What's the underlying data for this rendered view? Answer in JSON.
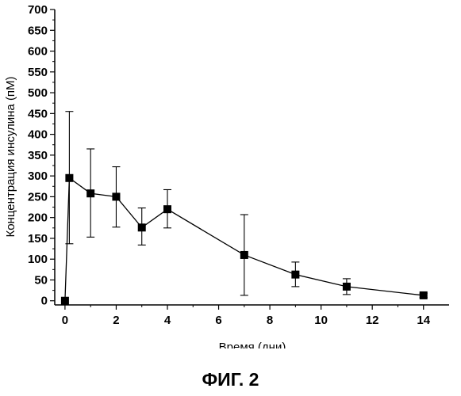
{
  "figure_caption": "ФИГ. 2",
  "chart_data": {
    "type": "scatter",
    "title": "",
    "xlabel": "Время (дни)",
    "ylabel": "Концентрация инсулина (пМ)",
    "xlim": [
      -0.4,
      15.0
    ],
    "ylim": [
      -10,
      700
    ],
    "x_ticks": [
      0,
      2,
      4,
      6,
      8,
      10,
      12,
      14
    ],
    "y_ticks": [
      0,
      50,
      100,
      150,
      200,
      250,
      300,
      350,
      400,
      450,
      500,
      550,
      600,
      650,
      700
    ],
    "grid": false,
    "marker": "square",
    "line": true,
    "series": [
      {
        "points": [
          {
            "x": 0,
            "y": 0
          },
          {
            "x": 0.17,
            "y": 295,
            "err_low": 137,
            "err_high": 455
          },
          {
            "x": 1,
            "y": 258,
            "err_low": 153,
            "err_high": 365
          },
          {
            "x": 2,
            "y": 250,
            "err_low": 177,
            "err_high": 322
          },
          {
            "x": 3,
            "y": 176,
            "err_low": 134,
            "err_high": 223
          },
          {
            "x": 4,
            "y": 220,
            "err_low": 175,
            "err_high": 267
          },
          {
            "x": 7,
            "y": 110,
            "err_low": 13,
            "err_high": 207
          },
          {
            "x": 9,
            "y": 63,
            "err_low": 34,
            "err_high": 93
          },
          {
            "x": 11,
            "y": 34,
            "err_low": 15,
            "err_high": 53
          },
          {
            "x": 14,
            "y": 13,
            "err_low": 8,
            "err_high": 18
          }
        ]
      }
    ]
  }
}
